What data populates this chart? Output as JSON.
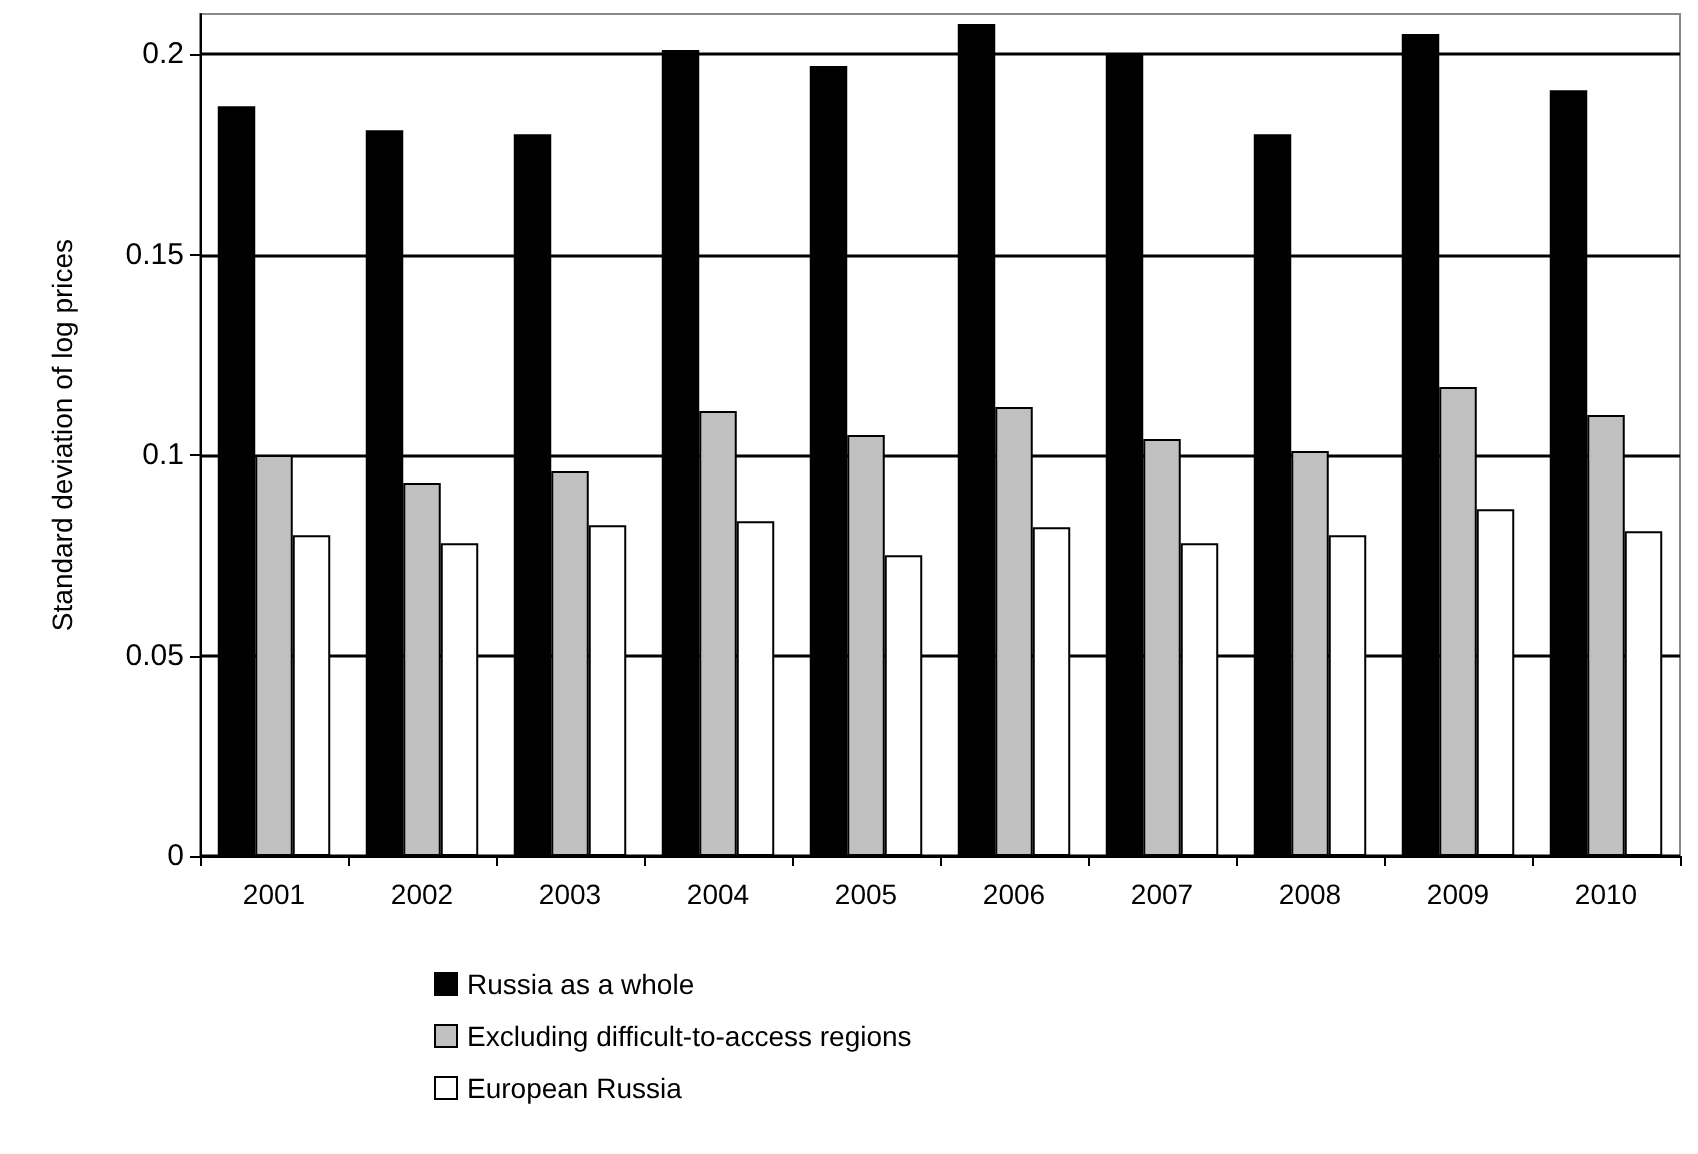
{
  "chart_data": {
    "type": "bar",
    "ylabel": "Standard deviation of log prices",
    "categories": [
      "2001",
      "2002",
      "2003",
      "2004",
      "2005",
      "2006",
      "2007",
      "2008",
      "2009",
      "2010"
    ],
    "series": [
      {
        "name": "Russia as a whole",
        "color": "#000000",
        "values": [
          0.187,
          0.181,
          0.18,
          0.201,
          0.197,
          0.2075,
          0.2,
          0.18,
          0.205,
          0.191
        ]
      },
      {
        "name": "Excluding difficult-to-access regions",
        "color": "#c0c0c0",
        "values": [
          0.1,
          0.093,
          0.096,
          0.111,
          0.105,
          0.112,
          0.104,
          0.101,
          0.117,
          0.11
        ]
      },
      {
        "name": "European Russia",
        "color": "#ffffff",
        "values": [
          0.08,
          0.078,
          0.0825,
          0.0835,
          0.075,
          0.082,
          0.078,
          0.08,
          0.0865,
          0.081
        ]
      }
    ],
    "ylim": [
      0,
      0.21
    ],
    "yticks": [
      0,
      0.05,
      0.1,
      0.15,
      0.2
    ],
    "grid": "y",
    "legend": "bottom"
  }
}
